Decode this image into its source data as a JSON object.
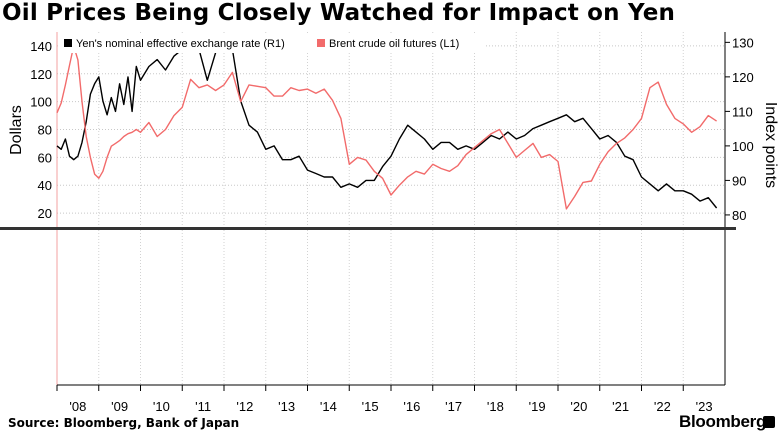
{
  "header": {
    "title": "Oil Prices Being Closely Watched for Impact on Yen"
  },
  "footer": {
    "source": "Source: Bloomberg, Bank of Japan",
    "brand": "Bloomberg"
  },
  "chart_data": {
    "type": "line",
    "title": "Oil Prices Being Closely Watched for Impact on Yen",
    "x_unit": "year",
    "x_tick_labels": [
      "'08",
      "'09",
      "'10",
      "'11",
      "'12",
      "'13",
      "'14",
      "'15",
      "'16",
      "'17",
      "'18",
      "'19",
      "'20",
      "'21",
      "'22",
      "'23"
    ],
    "xlim": [
      2008,
      2024
    ],
    "y_left": {
      "label": "Dollars",
      "ticks": [
        20,
        40,
        60,
        80,
        100,
        120,
        140
      ],
      "lim": [
        10,
        150
      ]
    },
    "y_right": {
      "label": "Index points",
      "ticks": [
        80,
        90,
        100,
        110,
        120,
        130
      ],
      "lim": [
        76.5,
        133
      ]
    },
    "legend_position": "top-left",
    "grid": true,
    "series": [
      {
        "name": "Yen's nominal effective exchange rate (R1)",
        "axis": "right",
        "color": "#000000",
        "x": [
          2008.0,
          2008.1,
          2008.2,
          2008.3,
          2008.4,
          2008.5,
          2008.6,
          2008.7,
          2008.8,
          2008.9,
          2009.0,
          2009.1,
          2009.2,
          2009.3,
          2009.4,
          2009.5,
          2009.6,
          2009.7,
          2009.8,
          2009.9,
          2010.0,
          2010.2,
          2010.4,
          2010.6,
          2010.8,
          2011.0,
          2011.2,
          2011.4,
          2011.6,
          2011.8,
          2012.0,
          2012.2,
          2012.4,
          2012.6,
          2012.8,
          2013.0,
          2013.2,
          2013.4,
          2013.6,
          2013.8,
          2014.0,
          2014.2,
          2014.4,
          2014.6,
          2014.8,
          2015.0,
          2015.2,
          2015.4,
          2015.6,
          2015.8,
          2016.0,
          2016.2,
          2016.4,
          2016.6,
          2016.8,
          2017.0,
          2017.2,
          2017.4,
          2017.6,
          2017.8,
          2018.0,
          2018.2,
          2018.4,
          2018.6,
          2018.8,
          2019.0,
          2019.2,
          2019.4,
          2019.6,
          2019.8,
          2020.0,
          2020.2,
          2020.4,
          2020.6,
          2020.8,
          2021.0,
          2021.2,
          2021.4,
          2021.6,
          2021.8,
          2022.0,
          2022.2,
          2022.4,
          2022.6,
          2022.8,
          2023.0,
          2023.2,
          2023.4,
          2023.6,
          2023.8
        ],
        "values": [
          100,
          99,
          102,
          97,
          96,
          97,
          101,
          107,
          115,
          118,
          120,
          113,
          109,
          114,
          110,
          118,
          112,
          120,
          110,
          123,
          119,
          123,
          125,
          122,
          126,
          128,
          131,
          128,
          119,
          127,
          131,
          128,
          113,
          106,
          104,
          99,
          100,
          96,
          96,
          97,
          93,
          92,
          91,
          91,
          88,
          89,
          88,
          90,
          90,
          94,
          97,
          102,
          106,
          104,
          102,
          99,
          101,
          101,
          99,
          100,
          99,
          101,
          103,
          102,
          104,
          102,
          103,
          105,
          106,
          107,
          108,
          109,
          107,
          108,
          105,
          102,
          103,
          101,
          97,
          96,
          91,
          89,
          87,
          89,
          87,
          87,
          86,
          84,
          85,
          82
        ]
      },
      {
        "name": "Brent crude oil futures (L1)",
        "axis": "left",
        "color": "#F26B6B",
        "x": [
          2008.0,
          2008.1,
          2008.2,
          2008.3,
          2008.4,
          2008.5,
          2008.6,
          2008.7,
          2008.8,
          2008.9,
          2009.0,
          2009.1,
          2009.2,
          2009.3,
          2009.4,
          2009.5,
          2009.6,
          2009.7,
          2009.8,
          2009.9,
          2010.0,
          2010.2,
          2010.4,
          2010.6,
          2010.8,
          2011.0,
          2011.2,
          2011.4,
          2011.6,
          2011.8,
          2012.0,
          2012.2,
          2012.4,
          2012.6,
          2012.8,
          2013.0,
          2013.2,
          2013.4,
          2013.6,
          2013.8,
          2014.0,
          2014.2,
          2014.4,
          2014.6,
          2014.8,
          2015.0,
          2015.2,
          2015.4,
          2015.6,
          2015.8,
          2016.0,
          2016.2,
          2016.4,
          2016.6,
          2016.8,
          2017.0,
          2017.2,
          2017.4,
          2017.6,
          2017.8,
          2018.0,
          2018.2,
          2018.4,
          2018.6,
          2018.8,
          2019.0,
          2019.2,
          2019.4,
          2019.6,
          2019.8,
          2020.0,
          2020.2,
          2020.4,
          2020.6,
          2020.8,
          2021.0,
          2021.2,
          2021.4,
          2021.6,
          2021.8,
          2022.0,
          2022.2,
          2022.4,
          2022.6,
          2022.8,
          2023.0,
          2023.2,
          2023.4,
          2023.6,
          2023.8
        ],
        "values": [
          92,
          99,
          112,
          126,
          140,
          130,
          100,
          75,
          60,
          48,
          45,
          50,
          60,
          68,
          70,
          72,
          75,
          77,
          78,
          80,
          78,
          85,
          75,
          80,
          90,
          96,
          116,
          110,
          112,
          108,
          112,
          121,
          100,
          112,
          111,
          110,
          104,
          104,
          110,
          108,
          109,
          106,
          109,
          101,
          88,
          55,
          60,
          58,
          50,
          45,
          33,
          40,
          46,
          50,
          48,
          55,
          52,
          50,
          54,
          62,
          67,
          72,
          77,
          80,
          70,
          60,
          65,
          70,
          60,
          62,
          57,
          23,
          32,
          42,
          43,
          55,
          64,
          70,
          74,
          80,
          88,
          110,
          114,
          98,
          88,
          84,
          78,
          82,
          90,
          86
        ]
      }
    ]
  }
}
